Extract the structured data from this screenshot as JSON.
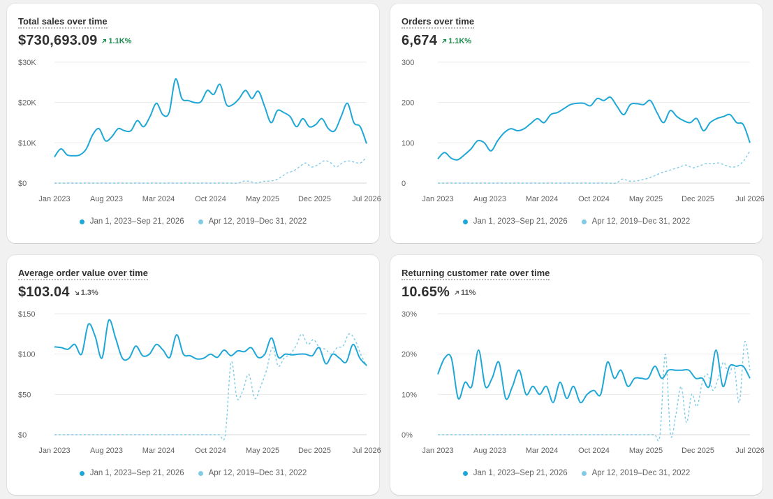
{
  "colors": {
    "primary": "#1fa7d6",
    "comparison": "#7fcbe6",
    "positive": "#1a8a4f",
    "neutral": "#616161"
  },
  "legend": {
    "primary": "Jan 1, 2023–Sep 21, 2026",
    "comparison": "Apr 12, 2019–Dec 31, 2022"
  },
  "cards": [
    {
      "title": "Total sales over time",
      "value": "$730,693.09",
      "change": "1.1K%",
      "change_direction": "up",
      "change_color": "positive"
    },
    {
      "title": "Orders over time",
      "value": "6,674",
      "change": "1.1K%",
      "change_direction": "up",
      "change_color": "positive"
    },
    {
      "title": "Average order value over time",
      "value": "$103.04",
      "change": "1.3%",
      "change_direction": "down",
      "change_color": "neutral"
    },
    {
      "title": "Returning customer rate over time",
      "value": "10.65%",
      "change": "11%",
      "change_direction": "up",
      "change_color": "neutral"
    }
  ],
  "chart_data": [
    {
      "type": "line",
      "title": "Total sales over time",
      "x_ticks": [
        "Jan 2023",
        "Aug 2023",
        "Mar 2024",
        "Oct 2024",
        "May 2025",
        "Dec 2025",
        "Jul 2026"
      ],
      "y_ticks": [
        "$0",
        "$10K",
        "$20K",
        "$30K"
      ],
      "ylim": [
        0,
        30000
      ],
      "grid": true,
      "legend_position": "bottom",
      "series": [
        {
          "name": "Jan 1, 2023–Sep 21, 2026",
          "style": "solid",
          "values": [
            6500,
            8500,
            7000,
            6800,
            7000,
            8500,
            12000,
            13500,
            10500,
            11500,
            13500,
            13000,
            13000,
            15500,
            14000,
            16500,
            19800,
            17000,
            17500,
            25800,
            21000,
            20500,
            20000,
            20200,
            23000,
            22000,
            24500,
            19500,
            19500,
            21000,
            23000,
            21000,
            22800,
            19000,
            15000,
            18000,
            17500,
            16500,
            14000,
            16000,
            14000,
            14500,
            16000,
            13500,
            13000,
            16500,
            19800,
            15000,
            14000,
            9800
          ]
        },
        {
          "name": "Apr 12, 2019–Dec 31, 2022",
          "style": "dashed",
          "values": [
            0,
            0,
            0,
            0,
            0,
            0,
            0,
            0,
            0,
            0,
            0,
            0,
            0,
            0,
            0,
            0,
            0,
            0,
            0,
            0,
            0,
            0,
            0,
            0,
            0,
            0,
            0,
            0,
            0,
            0,
            0,
            500,
            400,
            0,
            400,
            500,
            700,
            1500,
            2500,
            3000,
            4000,
            5000,
            4000,
            4500,
            5500,
            5200,
            4000,
            5000,
            5500,
            5200,
            5000,
            6500
          ]
        }
      ]
    },
    {
      "type": "line",
      "title": "Orders over time",
      "x_ticks": [
        "Jan 2023",
        "Aug 2023",
        "Mar 2024",
        "Oct 2024",
        "May 2025",
        "Dec 2025",
        "Jul 2026"
      ],
      "y_ticks": [
        "0",
        "100",
        "200",
        "300"
      ],
      "ylim": [
        0,
        300
      ],
      "grid": true,
      "legend_position": "bottom",
      "series": [
        {
          "name": "Jan 1, 2023–Sep 21, 2026",
          "style": "solid",
          "values": [
            60,
            76,
            62,
            58,
            70,
            85,
            105,
            100,
            80,
            105,
            125,
            135,
            130,
            135,
            148,
            160,
            150,
            170,
            175,
            185,
            195,
            198,
            198,
            192,
            210,
            205,
            213,
            190,
            170,
            195,
            197,
            195,
            205,
            175,
            150,
            180,
            165,
            155,
            150,
            160,
            130,
            150,
            160,
            165,
            170,
            150,
            145,
            100
          ]
        },
        {
          "name": "Apr 12, 2019–Dec 31, 2022",
          "style": "dashed",
          "values": [
            0,
            0,
            0,
            0,
            0,
            0,
            0,
            0,
            0,
            0,
            0,
            0,
            0,
            0,
            0,
            0,
            0,
            0,
            0,
            0,
            0,
            0,
            0,
            0,
            0,
            0,
            0,
            0,
            0,
            10,
            5,
            5,
            8,
            12,
            18,
            25,
            30,
            35,
            40,
            45,
            38,
            42,
            48,
            48,
            50,
            45,
            40,
            42,
            55,
            80
          ]
        }
      ]
    },
    {
      "type": "line",
      "title": "Average order value over time",
      "x_ticks": [
        "Jan 2023",
        "Aug 2023",
        "Mar 2024",
        "Oct 2024",
        "May 2025",
        "Dec 2025",
        "Jul 2026"
      ],
      "y_ticks": [
        "$0",
        "$50",
        "$100",
        "$150"
      ],
      "ylim": [
        0,
        150
      ],
      "grid": true,
      "legend_position": "bottom",
      "series": [
        {
          "name": "Jan 1, 2023–Sep 21, 2026",
          "style": "solid",
          "values": [
            109,
            108,
            106,
            112,
            100,
            137,
            122,
            95,
            142,
            120,
            95,
            95,
            110,
            98,
            100,
            112,
            105,
            96,
            124,
            100,
            98,
            94,
            95,
            100,
            96,
            105,
            98,
            104,
            103,
            108,
            96,
            100,
            120,
            96,
            100,
            99,
            100,
            100,
            98,
            108,
            88,
            100,
            95,
            90,
            112,
            95,
            86
          ]
        },
        {
          "name": "Apr 12, 2019–Dec 31, 2022",
          "style": "dashed",
          "values": [
            0,
            0,
            0,
            0,
            0,
            0,
            0,
            0,
            0,
            0,
            0,
            0,
            0,
            0,
            0,
            0,
            0,
            0,
            0,
            0,
            0,
            0,
            0,
            0,
            0,
            0,
            0,
            0,
            0,
            0,
            90,
            45,
            55,
            75,
            45,
            60,
            80,
            108,
            85,
            95,
            100,
            110,
            125,
            112,
            118,
            108,
            106,
            100,
            108,
            110,
            125,
            118,
            100,
            85
          ]
        }
      ]
    },
    {
      "type": "line",
      "title": "Returning customer rate over time",
      "x_ticks": [
        "Jan 2023",
        "Aug 2023",
        "Mar 2024",
        "Oct 2024",
        "May 2025",
        "Dec 2025",
        "Jul 2026"
      ],
      "y_ticks": [
        "0%",
        "10%",
        "20%",
        "30%"
      ],
      "ylim": [
        0,
        30
      ],
      "grid": true,
      "legend_position": "bottom",
      "series": [
        {
          "name": "Jan 1, 2023–Sep 21, 2026",
          "style": "solid",
          "values": [
            15,
            19,
            19,
            9,
            13,
            12,
            21,
            12,
            14,
            18,
            9,
            12,
            16,
            10,
            12,
            10,
            12,
            8,
            13,
            9,
            12,
            8,
            10,
            11,
            10,
            18,
            14,
            16,
            12,
            14,
            14,
            14,
            17,
            14,
            16,
            16,
            16,
            16,
            14,
            14,
            12,
            21,
            12,
            17,
            17,
            17,
            14
          ]
        },
        {
          "name": "Apr 12, 2019–Dec 31, 2022",
          "style": "dashed",
          "values": [
            0,
            0,
            0,
            0,
            0,
            0,
            0,
            0,
            0,
            0,
            0,
            0,
            0,
            0,
            0,
            0,
            0,
            0,
            0,
            0,
            0,
            0,
            0,
            0,
            0,
            0,
            0,
            0,
            0,
            0,
            0,
            0,
            0,
            0,
            0,
            0,
            0,
            0,
            0,
            0,
            0,
            0,
            0,
            20,
            0,
            5,
            12,
            3,
            10,
            7,
            13,
            15,
            11,
            14,
            18,
            15,
            17,
            8,
            23,
            16
          ]
        }
      ]
    }
  ]
}
